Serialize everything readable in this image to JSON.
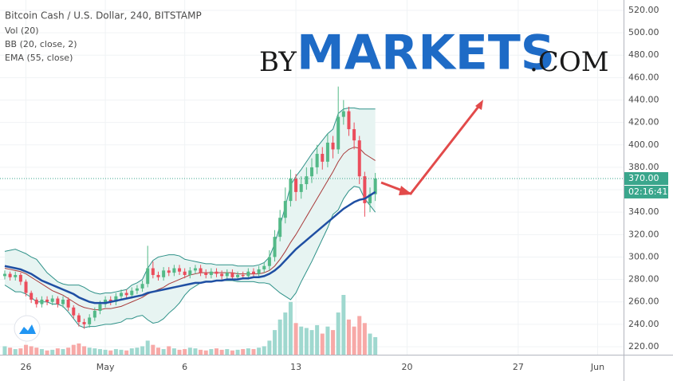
{
  "chart_data": {
    "type": "candlestick",
    "title": "Bitcoin Cash / U.S. Dollar, 240, BITSTAMP",
    "watermark": {
      "prefix": "BY",
      "main": "MARKETS",
      "suffix": ".COM"
    },
    "x": [
      0,
      1,
      2,
      3,
      4,
      5,
      6,
      7,
      8,
      9,
      10,
      11,
      12,
      13,
      14,
      15,
      16,
      17,
      18,
      19,
      20,
      21,
      22,
      23,
      24,
      25,
      26,
      27,
      28,
      29,
      30,
      31,
      32,
      33,
      34,
      35,
      36,
      37,
      38,
      39,
      40,
      41,
      42,
      43,
      44,
      45,
      46,
      47,
      48,
      49,
      50,
      51,
      52,
      53,
      54,
      55,
      56,
      57,
      58,
      59,
      60,
      61,
      62,
      63,
      64,
      65,
      66,
      67,
      68,
      69,
      70
    ],
    "open": [
      283,
      285,
      282,
      284,
      278,
      268,
      262,
      258,
      262,
      260,
      263,
      258,
      262,
      255,
      248,
      242,
      240,
      246,
      252,
      258,
      262,
      260,
      265,
      268,
      266,
      270,
      272,
      276,
      290,
      284,
      282,
      288,
      286,
      290,
      287,
      284,
      288,
      290,
      286,
      284,
      287,
      285,
      283,
      286,
      282,
      284,
      283,
      287,
      285,
      289,
      292,
      300,
      318,
      335,
      350,
      370,
      358,
      365,
      372,
      380,
      392,
      385,
      402,
      396,
      425,
      430,
      414,
      404,
      372,
      348,
      356
    ],
    "high": [
      288,
      287,
      287,
      286,
      280,
      270,
      264,
      265,
      265,
      266,
      265,
      265,
      264,
      257,
      250,
      245,
      249,
      255,
      261,
      265,
      265,
      268,
      271,
      271,
      273,
      275,
      279,
      310,
      296,
      287,
      291,
      291,
      293,
      293,
      290,
      291,
      293,
      293,
      289,
      290,
      290,
      288,
      289,
      289,
      287,
      287,
      290,
      290,
      292,
      295,
      306,
      324,
      342,
      362,
      378,
      374,
      372,
      380,
      388,
      400,
      398,
      410,
      408,
      452,
      440,
      434,
      420,
      408,
      376,
      362,
      375
    ],
    "low": [
      280,
      279,
      279,
      275,
      265,
      259,
      255,
      255,
      257,
      257,
      255,
      255,
      252,
      245,
      238,
      236,
      237,
      243,
      249,
      255,
      257,
      257,
      262,
      263,
      263,
      267,
      269,
      273,
      281,
      279,
      279,
      283,
      283,
      284,
      281,
      281,
      285,
      283,
      281,
      281,
      282,
      280,
      280,
      279,
      279,
      280,
      280,
      282,
      282,
      286,
      288,
      296,
      314,
      330,
      345,
      350,
      352,
      360,
      366,
      374,
      378,
      380,
      388,
      392,
      418,
      408,
      396,
      365,
      336,
      340,
      350
    ],
    "close": [
      285,
      282,
      284,
      278,
      268,
      262,
      258,
      262,
      260,
      263,
      258,
      262,
      255,
      248,
      242,
      240,
      246,
      252,
      258,
      262,
      260,
      265,
      268,
      266,
      270,
      272,
      276,
      290,
      284,
      282,
      288,
      286,
      290,
      287,
      284,
      288,
      290,
      286,
      284,
      287,
      285,
      283,
      286,
      282,
      284,
      283,
      287,
      285,
      289,
      292,
      300,
      318,
      335,
      350,
      370,
      358,
      365,
      372,
      380,
      392,
      385,
      402,
      396,
      425,
      430,
      414,
      404,
      372,
      348,
      356,
      370
    ],
    "up_color": "#53b987",
    "down_color": "#eb4d5c",
    "volume": {
      "name": "Vol (20)",
      "up_color": "#9fd8cf",
      "down_color": "#f7a9a7",
      "values": [
        12,
        10,
        8,
        9,
        14,
        12,
        10,
        8,
        6,
        7,
        9,
        8,
        10,
        14,
        16,
        12,
        10,
        9,
        8,
        7,
        6,
        8,
        7,
        6,
        9,
        10,
        12,
        20,
        14,
        10,
        8,
        12,
        9,
        7,
        8,
        10,
        9,
        7,
        6,
        8,
        9,
        7,
        8,
        6,
        7,
        8,
        9,
        8,
        10,
        12,
        20,
        35,
        50,
        60,
        75,
        45,
        40,
        38,
        35,
        42,
        30,
        40,
        35,
        60,
        85,
        50,
        40,
        55,
        45,
        30,
        25
      ]
    },
    "bb": {
      "name": "BB (20, close, 2)",
      "band_color": "#2e9188",
      "middle_color": "#a83a3a",
      "fill": "#e7f4f2",
      "upper": [
        305,
        306,
        307,
        305,
        303,
        300,
        298,
        292,
        286,
        282,
        278,
        276,
        275,
        275,
        275,
        273,
        270,
        268,
        267,
        268,
        268,
        269,
        270,
        271,
        275,
        277,
        280,
        290,
        297,
        300,
        301,
        302,
        302,
        301,
        298,
        297,
        296,
        295,
        294,
        294,
        293,
        293,
        293,
        293,
        292,
        292,
        292,
        292,
        293,
        295,
        300,
        312,
        328,
        345,
        364,
        372,
        378,
        385,
        392,
        398,
        404,
        410,
        414,
        428,
        432,
        433,
        433,
        432,
        432,
        432,
        432
      ],
      "middle": [
        290,
        289,
        288,
        287,
        285,
        282,
        279,
        276,
        273,
        270,
        268,
        266,
        263,
        260,
        257,
        255,
        254,
        253,
        253,
        254,
        254,
        255,
        256,
        258,
        260,
        262,
        264,
        267,
        269,
        271,
        273,
        276,
        278,
        280,
        282,
        284,
        285,
        286,
        286,
        286,
        286,
        286,
        286,
        286,
        285,
        285,
        285,
        285,
        285,
        286,
        288,
        292,
        298,
        305,
        313,
        320,
        328,
        336,
        344,
        352,
        360,
        368,
        376,
        385,
        392,
        396,
        398,
        397,
        392,
        389,
        386
      ],
      "lower": [
        275,
        272,
        269,
        269,
        267,
        264,
        260,
        260,
        260,
        258,
        258,
        256,
        251,
        245,
        239,
        237,
        238,
        238,
        239,
        240,
        240,
        241,
        242,
        245,
        245,
        247,
        248,
        244,
        241,
        242,
        245,
        250,
        254,
        259,
        266,
        271,
        274,
        277,
        278,
        278,
        279,
        279,
        279,
        279,
        278,
        278,
        278,
        278,
        277,
        277,
        276,
        272,
        268,
        265,
        262,
        268,
        278,
        287,
        296,
        306,
        316,
        326,
        338,
        342,
        352,
        359,
        363,
        362,
        352,
        346,
        340
      ]
    },
    "ema": {
      "name": "EMA (55, close)",
      "color": "#1f4fa3",
      "values": [
        292,
        291,
        290,
        289,
        287,
        285,
        282,
        279,
        277,
        275,
        273,
        271,
        269,
        267,
        264,
        262,
        260,
        259,
        259,
        259,
        260,
        261,
        262,
        263,
        264,
        265,
        266,
        268,
        269,
        270,
        271,
        272,
        273,
        274,
        275,
        276,
        277,
        277,
        278,
        278,
        279,
        279,
        280,
        280,
        280,
        281,
        281,
        282,
        282,
        283,
        285,
        288,
        292,
        297,
        302,
        307,
        311,
        315,
        319,
        323,
        327,
        331,
        335,
        339,
        343,
        346,
        349,
        351,
        352,
        355,
        358
      ]
    },
    "last_price": {
      "value": 370,
      "label": "370.00",
      "color": "#3aa68c"
    },
    "countdown": "02:16:41",
    "xlim": [
      -0.9,
      116.9
    ],
    "xticks": [
      {
        "value": 4,
        "label": "26"
      },
      {
        "value": 19,
        "label": "May"
      },
      {
        "value": 34,
        "label": "6"
      },
      {
        "value": 55,
        "label": "13"
      },
      {
        "value": 76,
        "label": "20"
      },
      {
        "value": 97,
        "label": "27"
      },
      {
        "value": 112,
        "label": "Jun"
      }
    ],
    "ylim": [
      212.9,
      529.2
    ],
    "yticks": [
      {
        "value": 220,
        "label": "220.00"
      },
      {
        "value": 240,
        "label": "240.00"
      },
      {
        "value": 260,
        "label": "260.00"
      },
      {
        "value": 280,
        "label": "280.00"
      },
      {
        "value": 300,
        "label": "300.00"
      },
      {
        "value": 320,
        "label": "320.00"
      },
      {
        "value": 340,
        "label": "340.00"
      },
      {
        "value": 360,
        "label": "360.00"
      },
      {
        "value": 380,
        "label": "380.00"
      },
      {
        "value": 400,
        "label": "400.00"
      },
      {
        "value": 420,
        "label": "420.00"
      },
      {
        "value": 440,
        "label": "440.00"
      },
      {
        "value": 460,
        "label": "460.00"
      },
      {
        "value": 480,
        "label": "480.00"
      },
      {
        "value": 500,
        "label": "500.00"
      },
      {
        "value": 520,
        "label": "520.00"
      }
    ],
    "grid": true
  }
}
